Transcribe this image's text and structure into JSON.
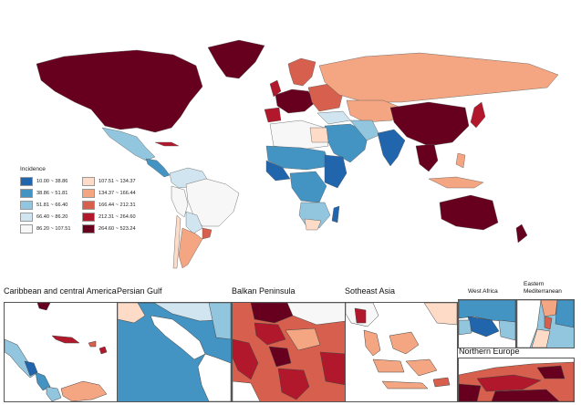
{
  "legend": {
    "title": "Incidence",
    "classes": [
      {
        "label": "10.00 ~ 38.86",
        "color": "#2166ac"
      },
      {
        "label": "38.86 ~ 51.81",
        "color": "#4393c3"
      },
      {
        "label": "51.81 ~ 66.40",
        "color": "#92c5de"
      },
      {
        "label": "66.40 ~ 86.20",
        "color": "#d1e5f0"
      },
      {
        "label": "86.20 ~ 107.51",
        "color": "#f7f7f7"
      },
      {
        "label": "107.51 ~ 134.37",
        "color": "#fddbc7"
      },
      {
        "label": "134.37 ~ 166.44",
        "color": "#f4a582"
      },
      {
        "label": "166.44 ~ 212.31",
        "color": "#d6604d"
      },
      {
        "label": "212.31 ~ 264.60",
        "color": "#b2182b"
      },
      {
        "label": "264.60 ~ 523.24",
        "color": "#67001f"
      }
    ]
  },
  "insets": {
    "caribbean": "Caribbean and central America",
    "persian_gulf": "Persian Gulf",
    "balkan": "Balkan Peninsula",
    "southeast_asia": "Sotheast Asia",
    "west_africa": "West Africa",
    "eastern_med_line1": "Eastern",
    "eastern_med_line2": "Mediterranean",
    "northern_europe": "Northern Europe"
  }
}
